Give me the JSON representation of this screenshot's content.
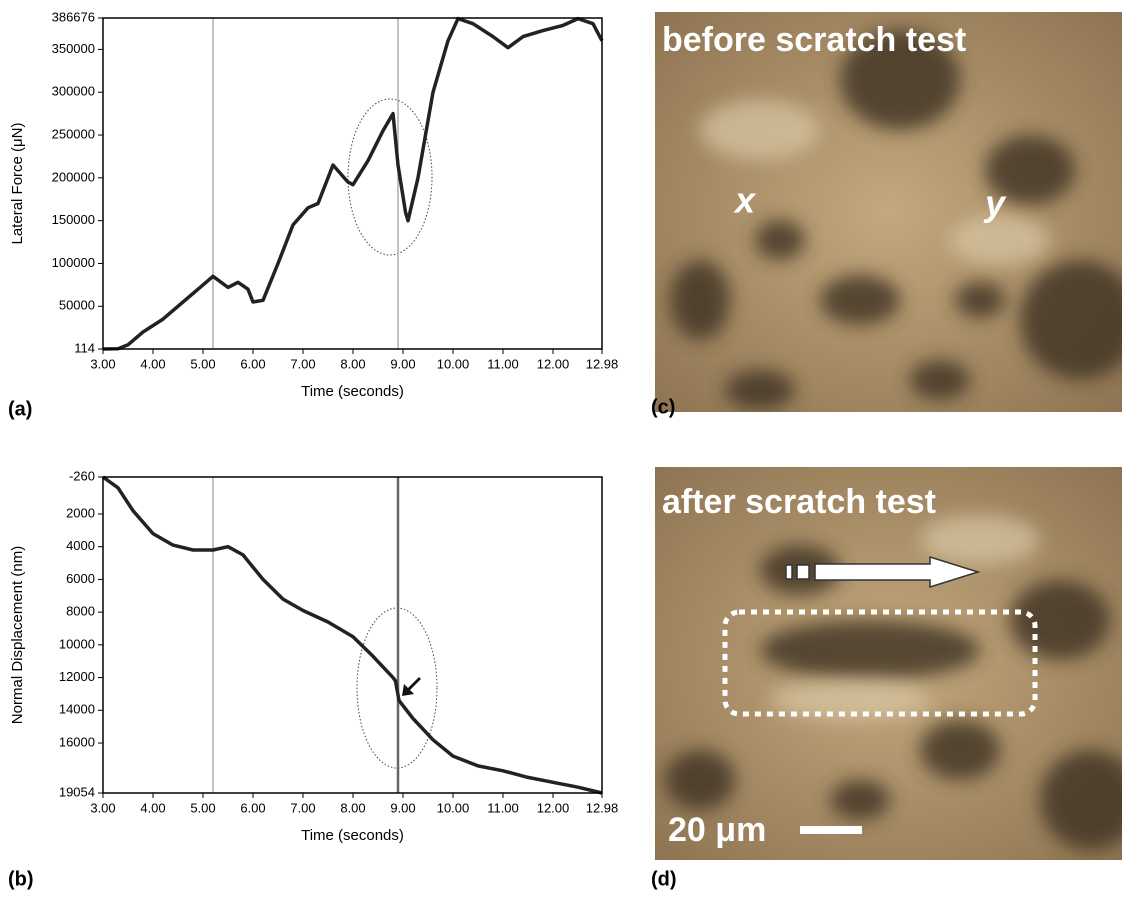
{
  "chart_data": [
    {
      "type": "line",
      "label": "(a)",
      "x_label": "Time (seconds)",
      "y_label": "Lateral Force (μN)",
      "xlim": [
        3.0,
        12.98
      ],
      "ylim": [
        114,
        386676
      ],
      "xticks": [
        {
          "value": 3,
          "label": "3.00"
        },
        {
          "value": 4,
          "label": "4.00"
        },
        {
          "value": 5,
          "label": "5.00"
        },
        {
          "value": 6,
          "label": "6.00"
        },
        {
          "value": 7,
          "label": "7.00"
        },
        {
          "value": 8,
          "label": "8.00"
        },
        {
          "value": 9,
          "label": "9.00"
        },
        {
          "value": 10,
          "label": "10.00"
        },
        {
          "value": 11,
          "label": "11.00"
        },
        {
          "value": 12,
          "label": "12.00"
        },
        12.98
      ],
      "yticks": [
        114,
        50000,
        100000,
        150000,
        200000,
        250000,
        300000,
        350000,
        386676
      ],
      "vlines": [
        5.2,
        8.9
      ],
      "color": "#222222",
      "x": [
        3.0,
        3.3,
        3.5,
        3.8,
        4.2,
        4.6,
        5.0,
        5.2,
        5.5,
        5.7,
        5.9,
        6.0,
        6.2,
        6.5,
        6.8,
        7.1,
        7.3,
        7.6,
        7.9,
        8.0,
        8.3,
        8.6,
        8.8,
        8.9,
        9.05,
        9.1,
        9.3,
        9.6,
        9.9,
        10.1,
        10.4,
        10.8,
        11.1,
        11.4,
        11.8,
        12.2,
        12.5,
        12.8,
        12.98
      ],
      "values": [
        114,
        500,
        5000,
        20000,
        35000,
        55000,
        75000,
        85000,
        72000,
        78000,
        70000,
        55000,
        57000,
        100000,
        145000,
        165000,
        170000,
        215000,
        195000,
        192000,
        220000,
        255000,
        275000,
        215000,
        160000,
        150000,
        200000,
        300000,
        360000,
        386000,
        380000,
        365000,
        352000,
        365000,
        372000,
        378000,
        386000,
        380000,
        360000
      ]
    },
    {
      "type": "line",
      "label": "(b)",
      "x_label": "Time (seconds)",
      "y_label": "Normal Displacement (nm)",
      "xlim": [
        3.0,
        12.98
      ],
      "ylim": [
        19054,
        -260
      ],
      "xticks": [
        {
          "value": 3,
          "label": "3.00"
        },
        {
          "value": 4,
          "label": "4.00"
        },
        {
          "value": 5,
          "label": "5.00"
        },
        {
          "value": 6,
          "label": "6.00"
        },
        {
          "value": 7,
          "label": "7.00"
        },
        {
          "value": 8,
          "label": "8.00"
        },
        {
          "value": 9,
          "label": "9.00"
        },
        {
          "value": 10,
          "label": "10.00"
        },
        {
          "value": 11,
          "label": "11.00"
        },
        {
          "value": 12,
          "label": "12.00"
        },
        12.98
      ],
      "yticks": [
        -260,
        2000,
        4000,
        6000,
        8000,
        10000,
        12000,
        14000,
        16000,
        19054
      ],
      "vlines": [
        5.2,
        8.9
      ],
      "color": "#222222",
      "x": [
        3.0,
        3.3,
        3.6,
        4.0,
        4.4,
        4.8,
        5.2,
        5.5,
        5.8,
        6.2,
        6.6,
        7.0,
        7.5,
        8.0,
        8.4,
        8.8,
        8.85,
        8.92,
        9.2,
        9.6,
        10.0,
        10.5,
        11.0,
        11.5,
        12.0,
        12.5,
        12.98
      ],
      "values": [
        -260,
        400,
        1800,
        3200,
        3900,
        4200,
        4200,
        4000,
        4500,
        6000,
        7200,
        7900,
        8600,
        9500,
        10700,
        12000,
        12200,
        13400,
        14500,
        15800,
        16800,
        17400,
        17700,
        18100,
        18400,
        18700,
        19054
      ]
    }
  ],
  "panels": {
    "c": {
      "label": "(c)",
      "caption": "before scratch test",
      "marks": [
        "x",
        "y"
      ]
    },
    "d": {
      "label": "(d)",
      "caption": "after scratch test",
      "scale": "20 μm"
    }
  }
}
